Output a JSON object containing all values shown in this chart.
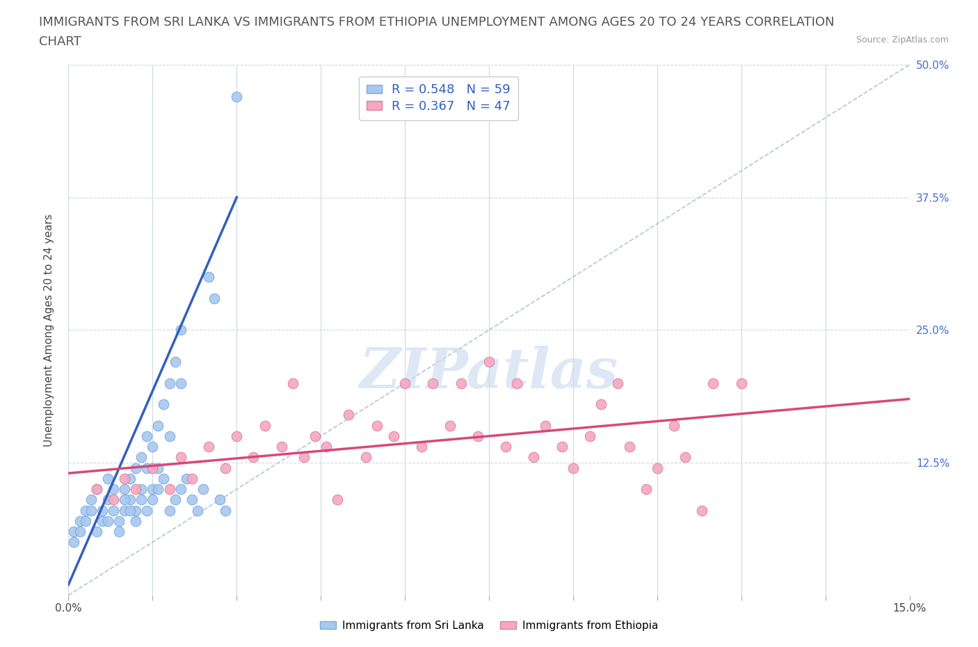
{
  "title_line1": "IMMIGRANTS FROM SRI LANKA VS IMMIGRANTS FROM ETHIOPIA UNEMPLOYMENT AMONG AGES 20 TO 24 YEARS CORRELATION",
  "title_line2": "CHART",
  "source_text": "Source: ZipAtlas.com",
  "ylabel": "Unemployment Among Ages 20 to 24 years",
  "xlim": [
    0.0,
    0.15
  ],
  "ylim": [
    0.0,
    0.5
  ],
  "xtick_vals": [
    0.0,
    0.015,
    0.03,
    0.045,
    0.06,
    0.075,
    0.09,
    0.105,
    0.12,
    0.135,
    0.15
  ],
  "xtick_label_sparse": {
    "0.0": "0.0%",
    "0.15": "15.0%"
  },
  "ytick_vals": [
    0.0,
    0.125,
    0.25,
    0.375,
    0.5
  ],
  "ytick_labels": [
    "",
    "12.5%",
    "25.0%",
    "37.5%",
    "50.0%"
  ],
  "sri_lanka_color": "#a8c8f0",
  "sri_lanka_edge": "#7aaad8",
  "ethiopia_color": "#f5a8c0",
  "ethiopia_edge": "#d880a0",
  "sri_lanka_line_color": "#3060c0",
  "ethiopia_line_color": "#d84878",
  "diag_line_color": "#b8c4d0",
  "right_tick_color": "#4070d0",
  "R_sri": 0.548,
  "N_sri": 59,
  "R_eth": 0.367,
  "N_eth": 47,
  "legend_label_sri": "Immigrants from Sri Lanka",
  "legend_label_eth": "Immigrants from Ethiopia",
  "watermark": "ZIPatlas",
  "watermark_color": "#d0ddf0",
  "title_fontsize": 13,
  "axis_label_fontsize": 11,
  "tick_fontsize": 11,
  "legend_fontsize": 13,
  "background_color": "#ffffff",
  "sri_lanka_x": [
    0.001,
    0.002,
    0.003,
    0.004,
    0.005,
    0.006,
    0.007,
    0.007,
    0.008,
    0.009,
    0.01,
    0.01,
    0.011,
    0.011,
    0.012,
    0.012,
    0.013,
    0.013,
    0.014,
    0.014,
    0.015,
    0.015,
    0.016,
    0.016,
    0.017,
    0.018,
    0.018,
    0.019,
    0.02,
    0.02,
    0.001,
    0.002,
    0.003,
    0.004,
    0.005,
    0.006,
    0.007,
    0.008,
    0.009,
    0.01,
    0.011,
    0.012,
    0.013,
    0.014,
    0.015,
    0.016,
    0.017,
    0.018,
    0.019,
    0.02,
    0.021,
    0.022,
    0.023,
    0.024,
    0.025,
    0.026,
    0.027,
    0.028,
    0.03
  ],
  "sri_lanka_y": [
    0.06,
    0.07,
    0.08,
    0.09,
    0.1,
    0.08,
    0.09,
    0.11,
    0.1,
    0.07,
    0.08,
    0.1,
    0.09,
    0.11,
    0.12,
    0.08,
    0.13,
    0.1,
    0.12,
    0.15,
    0.14,
    0.1,
    0.16,
    0.12,
    0.18,
    0.2,
    0.15,
    0.22,
    0.25,
    0.2,
    0.05,
    0.06,
    0.07,
    0.08,
    0.06,
    0.07,
    0.07,
    0.08,
    0.06,
    0.09,
    0.08,
    0.07,
    0.09,
    0.08,
    0.09,
    0.1,
    0.11,
    0.08,
    0.09,
    0.1,
    0.11,
    0.09,
    0.08,
    0.1,
    0.3,
    0.28,
    0.09,
    0.08,
    0.47
  ],
  "ethiopia_x": [
    0.005,
    0.008,
    0.01,
    0.012,
    0.015,
    0.018,
    0.02,
    0.022,
    0.025,
    0.028,
    0.03,
    0.033,
    0.035,
    0.038,
    0.04,
    0.042,
    0.044,
    0.046,
    0.048,
    0.05,
    0.053,
    0.055,
    0.058,
    0.06,
    0.063,
    0.065,
    0.068,
    0.07,
    0.073,
    0.075,
    0.078,
    0.08,
    0.083,
    0.085,
    0.088,
    0.09,
    0.093,
    0.095,
    0.098,
    0.1,
    0.103,
    0.105,
    0.108,
    0.11,
    0.113,
    0.115,
    0.12
  ],
  "ethiopia_y": [
    0.1,
    0.09,
    0.11,
    0.1,
    0.12,
    0.1,
    0.13,
    0.11,
    0.14,
    0.12,
    0.15,
    0.13,
    0.16,
    0.14,
    0.2,
    0.13,
    0.15,
    0.14,
    0.09,
    0.17,
    0.13,
    0.16,
    0.15,
    0.2,
    0.14,
    0.2,
    0.16,
    0.2,
    0.15,
    0.22,
    0.14,
    0.2,
    0.13,
    0.16,
    0.14,
    0.12,
    0.15,
    0.18,
    0.2,
    0.14,
    0.1,
    0.12,
    0.16,
    0.13,
    0.08,
    0.2,
    0.2
  ],
  "sri_line_x0": 0.0,
  "sri_line_y0": 0.01,
  "sri_line_x1": 0.03,
  "sri_line_y1": 0.375,
  "eth_line_x0": 0.0,
  "eth_line_y0": 0.115,
  "eth_line_x1": 0.15,
  "eth_line_y1": 0.185
}
